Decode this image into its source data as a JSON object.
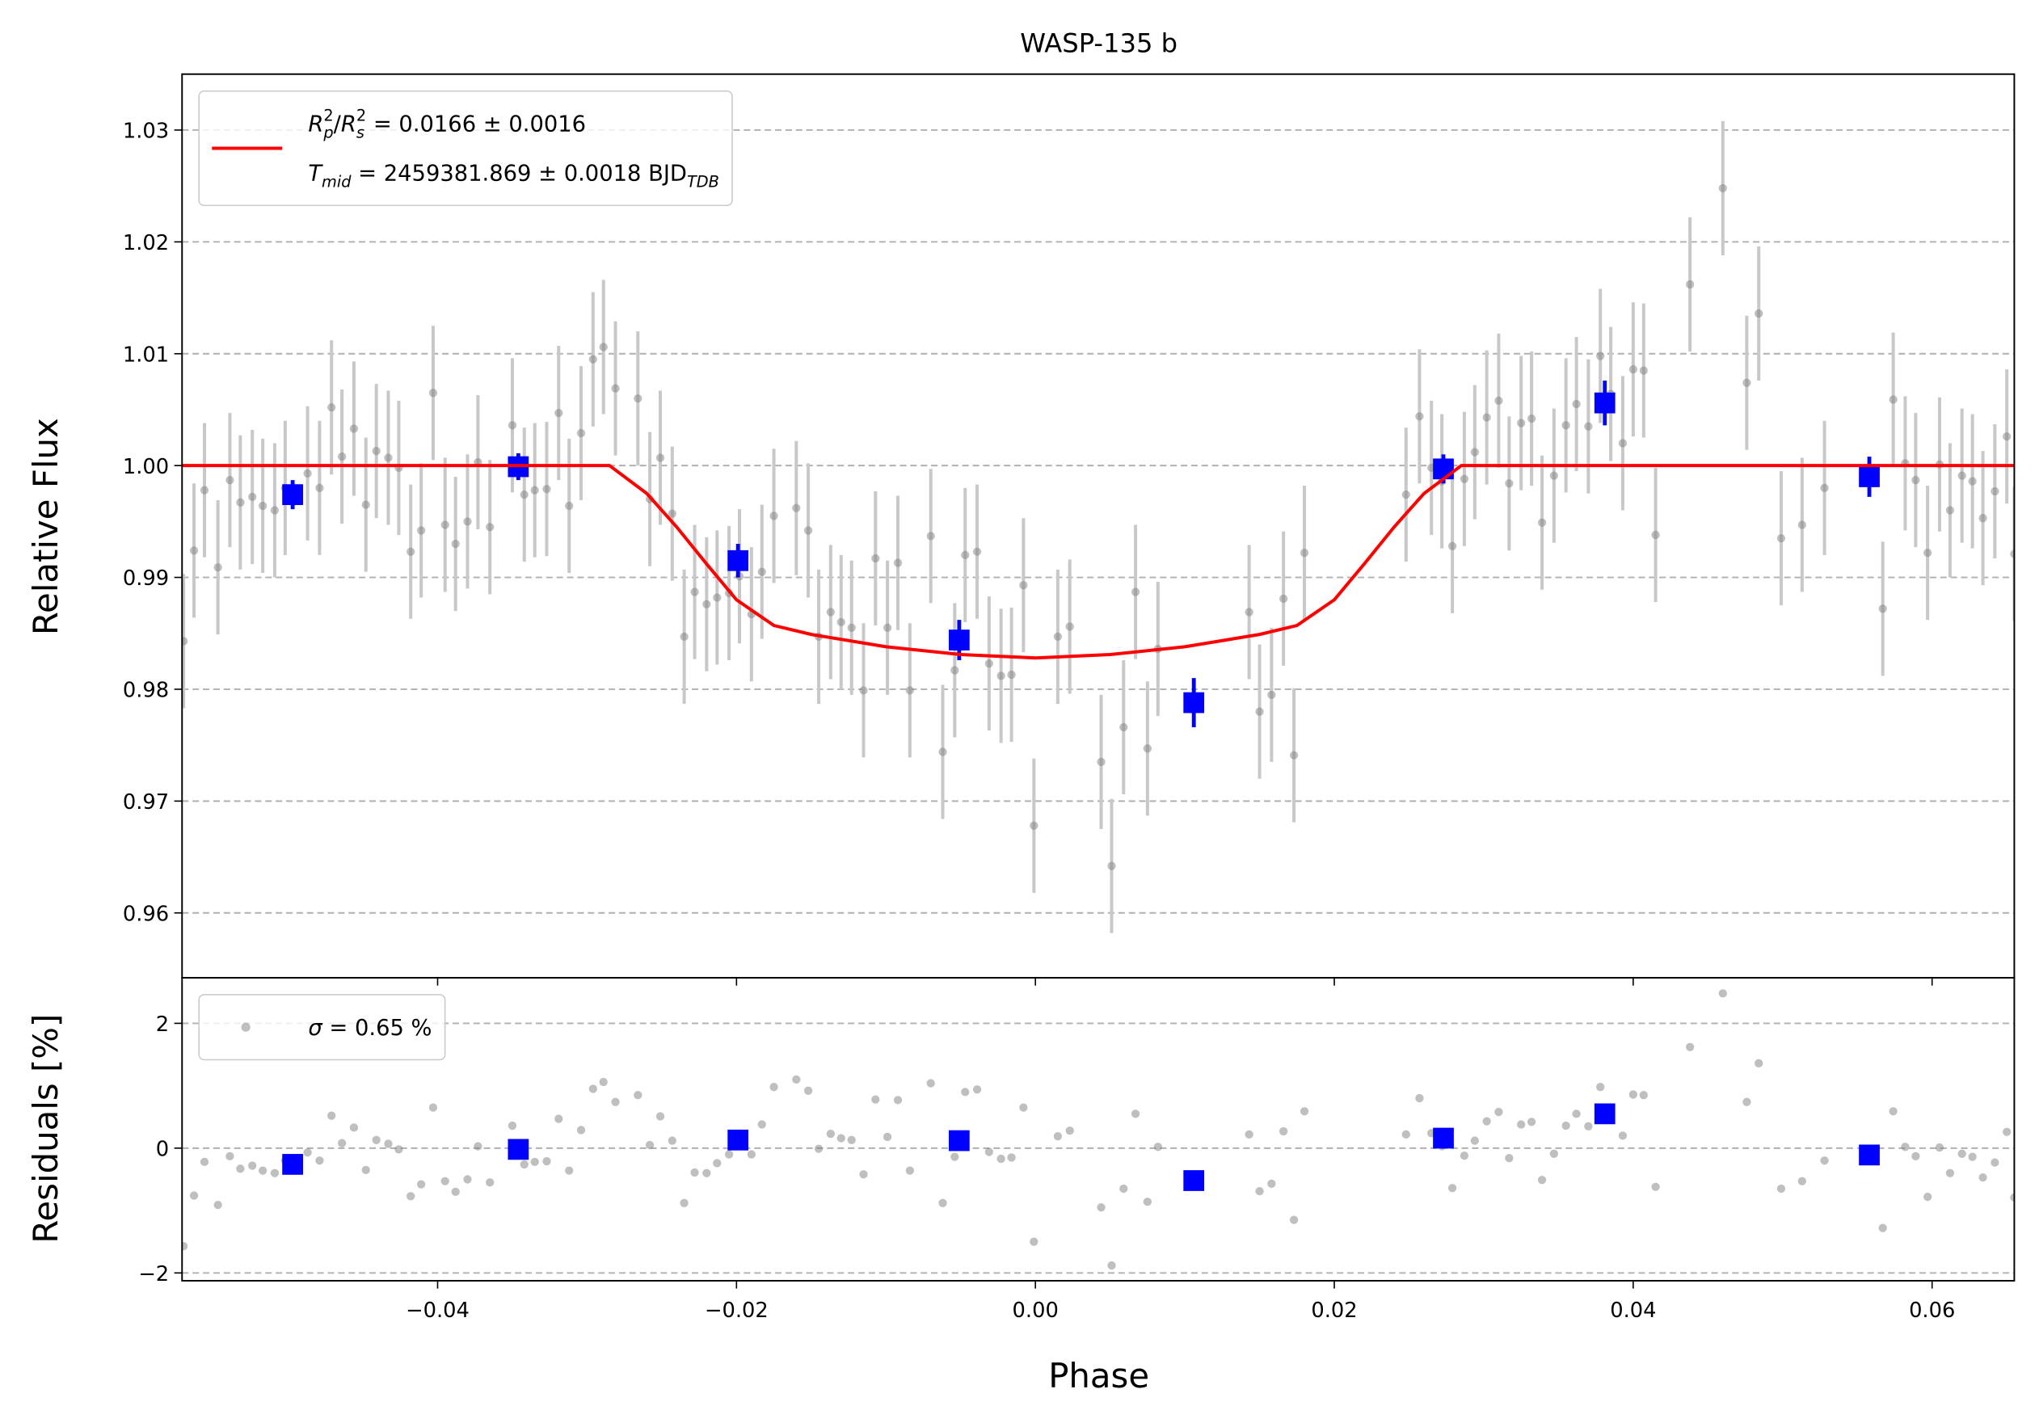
{
  "chart_data": [
    {
      "type": "scatter",
      "title": "WASP-135 b",
      "ylabel": "Relative Flux",
      "xlim": [
        -0.0571,
        0.0655
      ],
      "ylim": [
        0.9542,
        1.035
      ],
      "yticks": [
        0.96,
        0.97,
        0.98,
        0.99,
        {
          "value": 1.0,
          "label": "1.00"
        },
        1.01,
        1.02,
        1.03
      ],
      "grid": true,
      "legend": "upper left",
      "series": [
        {
          "marker": "o",
          "color": "#808080",
          "ecolor": "#c8c8c8",
          "error": 0.006,
          "x": [
            -0.057,
            -0.0563,
            -0.0556,
            -0.0547,
            -0.0539,
            -0.0532,
            -0.0524,
            -0.0517,
            -0.0509,
            -0.0502,
            -0.0487,
            -0.0479,
            -0.0471,
            -0.0464,
            -0.0456,
            -0.0448,
            -0.0441,
            -0.0433,
            -0.0426,
            -0.0418,
            -0.0411,
            -0.0403,
            -0.0395,
            -0.0388,
            -0.038,
            -0.0373,
            -0.0365,
            -0.035,
            -0.0342,
            -0.0335,
            -0.0327,
            -0.0319,
            -0.0312,
            -0.0304,
            -0.0296,
            -0.0289,
            -0.0281,
            -0.0266,
            -0.0258,
            -0.0251,
            -0.0243,
            -0.0235,
            -0.0228,
            -0.022,
            -0.0213,
            -0.0205,
            -0.0198,
            -0.019,
            -0.0183,
            -0.0175,
            -0.016,
            -0.0152,
            -0.0145,
            -0.0137,
            -0.013,
            -0.0123,
            -0.0115,
            -0.0107,
            -0.0099,
            -0.0092,
            -0.0084,
            -0.007,
            -0.0062,
            -0.0054,
            -0.0047,
            -0.0039,
            -0.0031,
            -0.0023,
            -0.0016,
            -0.0008,
            -0.0001,
            0.0015,
            0.0023,
            0.0044,
            0.0051,
            0.0059,
            0.0067,
            0.0075,
            0.0082,
            0.0143,
            0.015,
            0.0158,
            0.0166,
            0.0173,
            0.018,
            0.0248,
            0.0257,
            0.0265,
            0.0272,
            0.0279,
            0.0287,
            0.0294,
            0.0302,
            0.031,
            0.0317,
            0.0325,
            0.0332,
            0.0339,
            0.0347,
            0.0355,
            0.0362,
            0.037,
            0.0378,
            0.0385,
            0.0393,
            0.04,
            0.0407,
            0.0415,
            0.0438,
            0.046,
            0.0476,
            0.0484,
            0.0499,
            0.0513,
            0.0528,
            0.0567,
            0.0574,
            0.0582,
            0.0589,
            0.0597,
            0.0605,
            0.0612,
            0.062,
            0.0627,
            0.0634,
            0.0642,
            0.065,
            0.0655
          ],
          "values": [
            0.9843,
            0.9924,
            0.9978,
            0.9909,
            0.9987,
            0.9967,
            0.9972,
            0.9964,
            0.996,
            0.998,
            0.9993,
            0.998,
            1.0052,
            1.0008,
            1.0033,
            0.9965,
            1.0013,
            1.0007,
            0.9998,
            0.9923,
            0.9942,
            1.0065,
            0.9947,
            0.993,
            0.995,
            1.0003,
            0.9945,
            1.0036,
            0.9974,
            0.9978,
            0.9979,
            1.0047,
            0.9964,
            1.0029,
            1.0095,
            1.0106,
            1.0069,
            1.006,
            0.997,
            1.0007,
            0.9957,
            0.9847,
            0.9887,
            0.9876,
            0.9882,
            0.9886,
            0.9901,
            0.9867,
            0.9905,
            0.9955,
            0.9962,
            0.9942,
            0.9847,
            0.9869,
            0.986,
            0.9855,
            0.9799,
            0.9917,
            0.9855,
            0.9913,
            0.9799,
            0.9937,
            0.9744,
            0.9817,
            0.992,
            0.9923,
            0.9823,
            0.9812,
            0.9813,
            0.9893,
            0.9678,
            0.9847,
            0.9856,
            0.9735,
            0.9642,
            0.9766,
            0.9887,
            0.9747,
            0.9836,
            0.9869,
            0.978,
            0.9795,
            0.9881,
            0.9741,
            0.9922,
            0.9974,
            1.0044,
            0.9998,
            0.9986,
            0.9928,
            0.9988,
            1.0012,
            1.0043,
            1.0058,
            0.9984,
            1.0038,
            1.0042,
            0.9949,
            0.9991,
            1.0036,
            1.0055,
            1.0035,
            1.0098,
            1.0064,
            1.002,
            1.0086,
            1.0085,
            0.9938,
            1.0162,
            1.0248,
            1.0074,
            1.0136,
            0.9935,
            0.9947,
            0.998,
            0.9872,
            1.0059,
            1.0002,
            0.9987,
            0.9922,
            1.0001,
            0.996,
            0.9991,
            0.9986,
            0.9953,
            0.9977,
            1.0026,
            0.9921
          ]
        },
        {
          "marker": "s",
          "color": "#0000ff",
          "ecolor": "#0000ff",
          "x": [
            -0.0497,
            -0.0346,
            -0.0199,
            -0.0051,
            0.0106,
            0.0273,
            0.0381,
            0.0558
          ],
          "values": [
            0.9974,
            0.9999,
            0.9915,
            0.9844,
            0.9788,
            0.9997,
            1.0056,
            0.999
          ],
          "errors": [
            0.0013,
            0.0012,
            0.0015,
            0.0018,
            0.0022,
            0.0013,
            0.002,
            0.0018
          ]
        },
        {
          "linestyle": "-",
          "color": "#ff0000",
          "name": [
            [
              {
                "text": "R",
                "style": "italic"
              },
              {
                "text": "p",
                "style": "sub"
              },
              {
                "text": "2",
                "style": "sup"
              },
              {
                "text": "/",
                "style": "normal"
              },
              {
                "text": "R",
                "style": "italic"
              },
              {
                "text": "s",
                "style": "sub"
              },
              {
                "text": "2",
                "style": "sup"
              },
              {
                "text": " = 0.0166 ± 0.0016",
                "style": "normal"
              }
            ],
            [
              {
                "text": "T",
                "style": "italic"
              },
              {
                "text": "mid",
                "style": "sub"
              },
              {
                "text": " = 2459381.869 ± 0.0018 BJD",
                "style": "normal"
              },
              {
                "text": "TDB",
                "style": "sub"
              }
            ]
          ],
          "x": [
            -0.0571,
            -0.0285,
            -0.026,
            -0.024,
            -0.022,
            -0.02,
            -0.0175,
            -0.015,
            -0.01,
            -0.005,
            0.0,
            0.005,
            0.01,
            0.015,
            0.0175,
            0.02,
            0.022,
            0.024,
            0.026,
            0.0285,
            0.0655
          ],
          "values": [
            1.0,
            1.0,
            0.9975,
            0.9945,
            0.9912,
            0.988,
            0.9857,
            0.9849,
            0.9838,
            0.9831,
            0.9828,
            0.9831,
            0.9838,
            0.9849,
            0.9857,
            0.988,
            0.9912,
            0.9945,
            0.9975,
            1.0,
            1.0
          ]
        }
      ]
    },
    {
      "type": "scatter",
      "xlabel": "Phase",
      "ylabel": "Residuals [%]",
      "xlim": [
        -0.0571,
        0.0655
      ],
      "ylim": [
        -2.125,
        2.73
      ],
      "xticks": [
        {
          "value": -0.04,
          "label": "−0.04"
        },
        {
          "value": -0.02,
          "label": "−0.02"
        },
        {
          "value": 0,
          "label": "0.00"
        },
        0.02,
        0.04,
        0.06
      ],
      "yticks": [
        {
          "value": -2,
          "label": "−2"
        },
        0,
        2
      ],
      "grid": true,
      "legend": "upper left",
      "series": [
        {
          "marker": "o",
          "color": "#808080",
          "name": [
            [
              {
                "text": "σ",
                "style": "italic"
              },
              {
                "text": " = 0.65 %",
                "style": "normal"
              }
            ]
          ],
          "x": [
            -0.057,
            -0.0563,
            -0.0556,
            -0.0547,
            -0.0539,
            -0.0532,
            -0.0524,
            -0.0517,
            -0.0509,
            -0.0502,
            -0.0487,
            -0.0479,
            -0.0471,
            -0.0464,
            -0.0456,
            -0.0448,
            -0.0441,
            -0.0433,
            -0.0426,
            -0.0418,
            -0.0411,
            -0.0403,
            -0.0395,
            -0.0388,
            -0.038,
            -0.0373,
            -0.0365,
            -0.035,
            -0.0342,
            -0.0335,
            -0.0327,
            -0.0319,
            -0.0312,
            -0.0304,
            -0.0296,
            -0.0289,
            -0.0281,
            -0.0266,
            -0.0258,
            -0.0251,
            -0.0243,
            -0.0235,
            -0.0228,
            -0.022,
            -0.0213,
            -0.0205,
            -0.0198,
            -0.019,
            -0.0183,
            -0.0175,
            -0.016,
            -0.0152,
            -0.0145,
            -0.0137,
            -0.013,
            -0.0123,
            -0.0115,
            -0.0107,
            -0.0099,
            -0.0092,
            -0.0084,
            -0.007,
            -0.0062,
            -0.0054,
            -0.0047,
            -0.0039,
            -0.0031,
            -0.0023,
            -0.0016,
            -0.0008,
            -0.0001,
            0.0015,
            0.0023,
            0.0044,
            0.0051,
            0.0059,
            0.0067,
            0.0075,
            0.0082,
            0.0143,
            0.015,
            0.0158,
            0.0166,
            0.0173,
            0.018,
            0.0248,
            0.0257,
            0.0265,
            0.0272,
            0.0279,
            0.0287,
            0.0294,
            0.0302,
            0.031,
            0.0317,
            0.0325,
            0.0332,
            0.0339,
            0.0347,
            0.0355,
            0.0362,
            0.037,
            0.0378,
            0.0385,
            0.0393,
            0.04,
            0.0407,
            0.0415,
            0.0438,
            0.046,
            0.0476,
            0.0484,
            0.0499,
            0.0513,
            0.0528,
            0.0567,
            0.0574,
            0.0582,
            0.0589,
            0.0597,
            0.0605,
            0.0612,
            0.062,
            0.0627,
            0.0634,
            0.0642,
            0.065,
            0.0655
          ],
          "values": [
            -1.57,
            -0.76,
            -0.22,
            -0.91,
            -0.13,
            -0.33,
            -0.28,
            -0.36,
            -0.4,
            -0.2,
            -0.07,
            -0.2,
            0.52,
            0.08,
            0.33,
            -0.35,
            0.13,
            0.07,
            -0.02,
            -0.77,
            -0.58,
            0.65,
            -0.53,
            -0.7,
            -0.5,
            0.03,
            -0.55,
            0.36,
            -0.26,
            -0.22,
            -0.21,
            0.47,
            -0.36,
            0.29,
            0.95,
            1.06,
            0.74,
            0.85,
            0.05,
            0.51,
            0.12,
            -0.88,
            -0.39,
            -0.4,
            -0.24,
            -0.1,
            0.14,
            -0.1,
            0.38,
            0.98,
            1.1,
            0.92,
            -0.01,
            0.23,
            0.16,
            0.13,
            -0.42,
            0.78,
            0.18,
            0.77,
            -0.36,
            1.04,
            -0.88,
            -0.14,
            0.9,
            0.94,
            -0.06,
            -0.17,
            -0.15,
            0.65,
            -1.5,
            0.19,
            0.28,
            -0.95,
            -1.88,
            -0.65,
            0.55,
            -0.86,
            0.02,
            0.22,
            -0.69,
            -0.57,
            0.27,
            -1.15,
            0.59,
            0.22,
            0.8,
            0.24,
            0.03,
            -0.64,
            -0.12,
            0.12,
            0.43,
            0.58,
            -0.16,
            0.38,
            0.42,
            -0.51,
            -0.09,
            0.36,
            0.55,
            0.35,
            0.98,
            0.64,
            0.2,
            0.86,
            0.85,
            -0.62,
            1.62,
            2.48,
            0.74,
            1.36,
            -0.65,
            -0.53,
            -0.2,
            -1.28,
            0.59,
            0.02,
            -0.13,
            -0.78,
            0.01,
            -0.4,
            -0.09,
            -0.14,
            -0.47,
            -0.23,
            0.26,
            -0.79
          ]
        },
        {
          "marker": "s",
          "color": "#0000ff",
          "x": [
            -0.0497,
            -0.0346,
            -0.0199,
            -0.0051,
            0.0106,
            0.0273,
            0.0381,
            0.0558
          ],
          "values": [
            -0.26,
            -0.02,
            0.13,
            0.12,
            -0.52,
            0.16,
            0.55,
            -0.11
          ]
        }
      ]
    }
  ]
}
